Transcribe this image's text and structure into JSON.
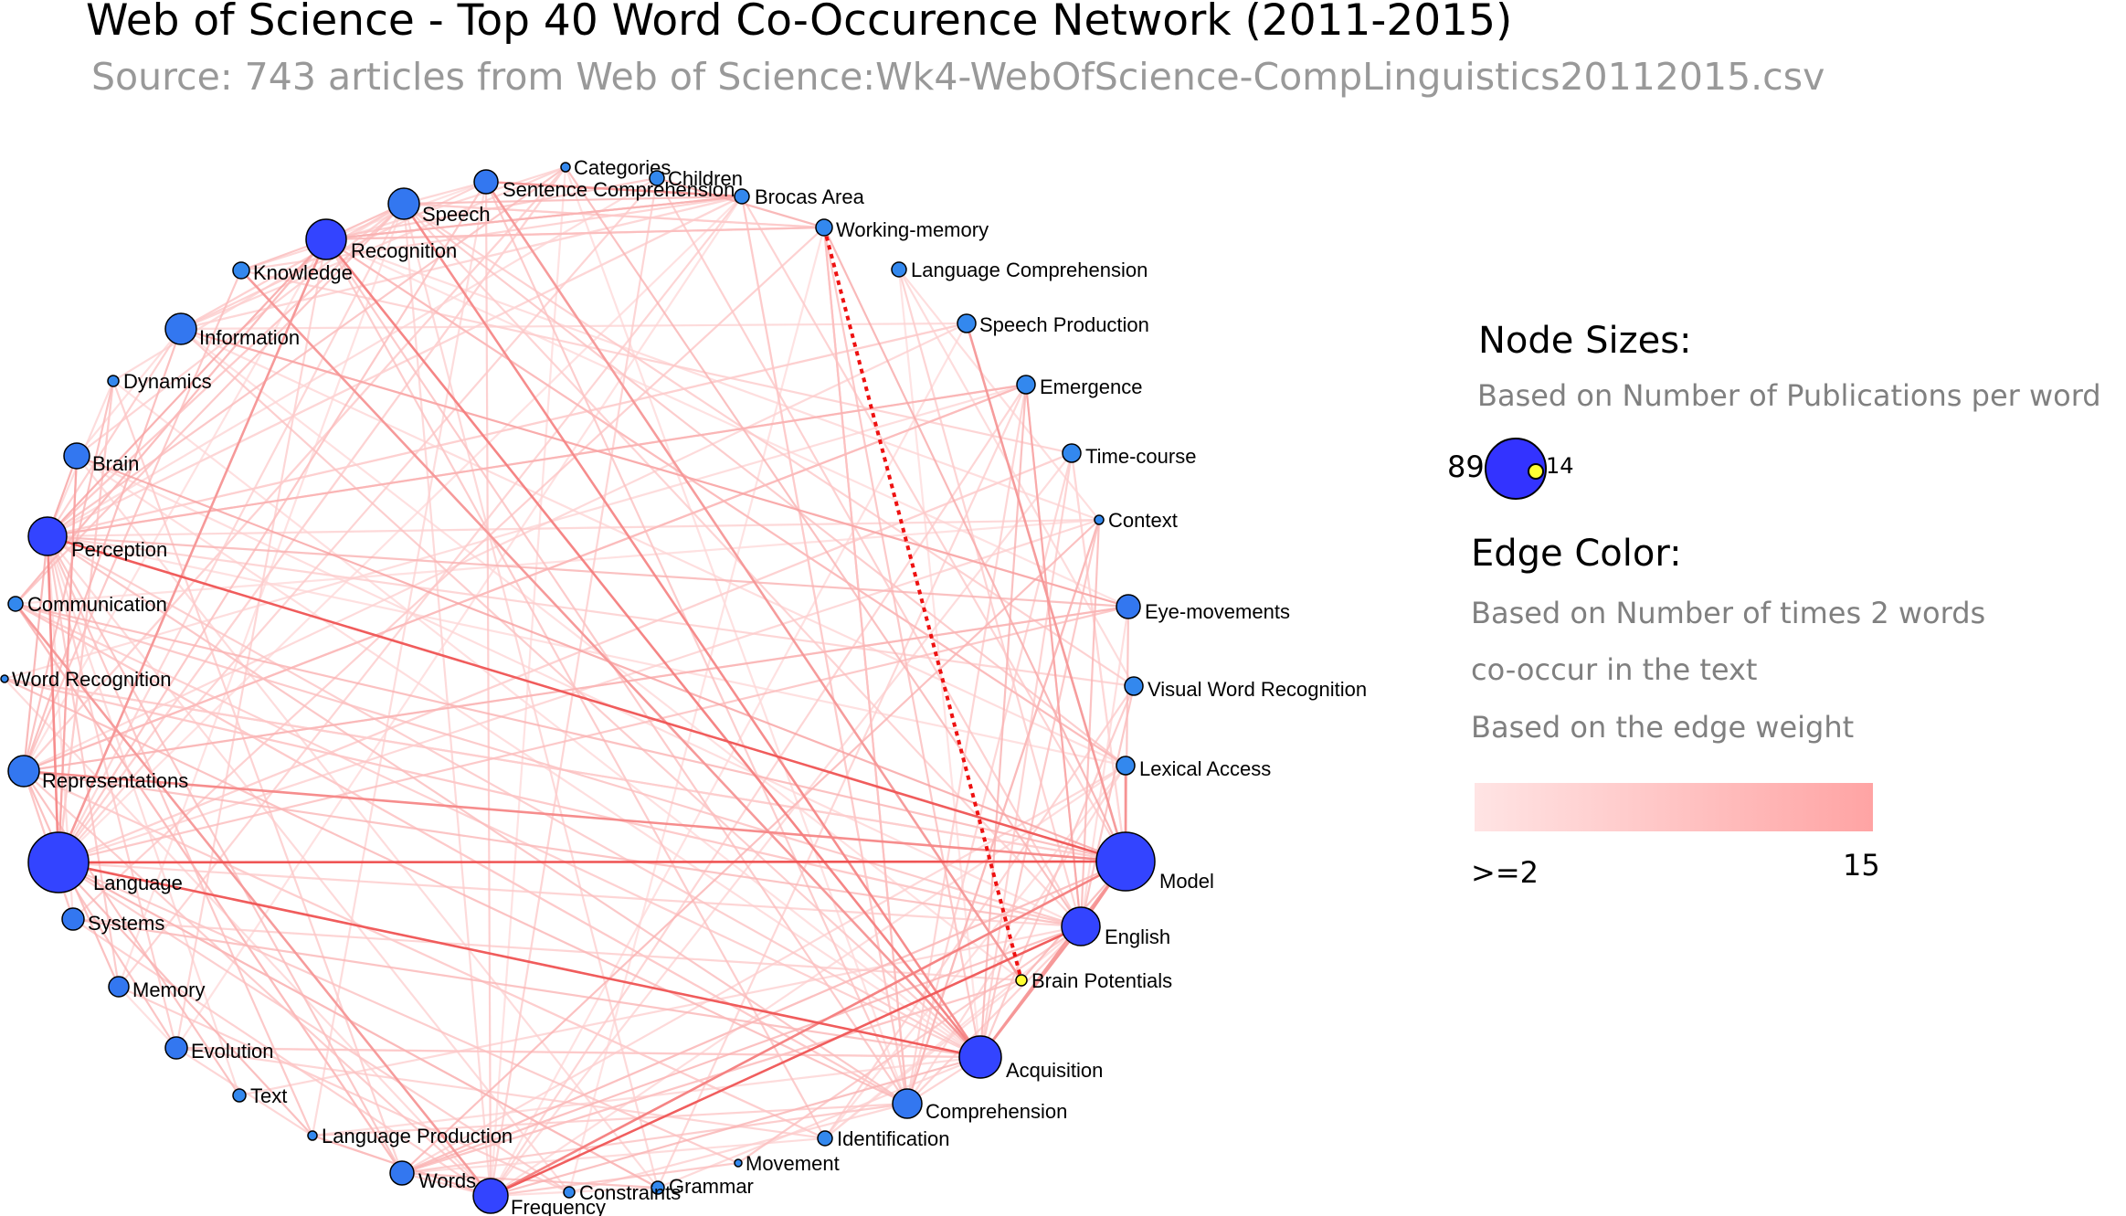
{
  "title": "Web of Science - Top 40 Word Co-Occurence Network (2011-2015)",
  "subtitle": "Source: 743 articles from Web of Science:Wk4-WebOfScience-CompLinguistics20112015.csv",
  "colors": {
    "node": "#3344ff",
    "node_small": "#3388ee",
    "node_highlight": "#ffff33",
    "edge_strong": "#ee3333",
    "edge_weak": "#ffdddd",
    "dotted_edge": "#ee1111"
  },
  "legend": {
    "node_sizes_title": "Node Sizes:",
    "node_sizes_desc": "Based on Number of Publications per word",
    "node_size_max": "89",
    "node_size_min": "14",
    "edge_color_title": "Edge Color:",
    "edge_color_desc_1": "Based on Number of times 2 words",
    "edge_color_desc_2": "co-occur in the text",
    "edge_color_desc_3": "Based on the edge weight",
    "edge_min": ">=2",
    "edge_max": "15"
  },
  "nodes": [
    {
      "id": "categories",
      "label": "Categories"
    },
    {
      "id": "children",
      "label": "Children"
    },
    {
      "id": "sentence-comprehension",
      "label": "Sentence Comprehension"
    },
    {
      "id": "brocas-area",
      "label": "Brocas Area"
    },
    {
      "id": "speech",
      "label": "Speech"
    },
    {
      "id": "working-memory",
      "label": "Working-memory"
    },
    {
      "id": "recognition",
      "label": "Recognition"
    },
    {
      "id": "language-comprehension",
      "label": "Language Comprehension"
    },
    {
      "id": "knowledge",
      "label": "Knowledge"
    },
    {
      "id": "speech-production",
      "label": "Speech Production"
    },
    {
      "id": "information",
      "label": "Information"
    },
    {
      "id": "emergence",
      "label": "Emergence"
    },
    {
      "id": "dynamics",
      "label": "Dynamics"
    },
    {
      "id": "time-course",
      "label": "Time-course"
    },
    {
      "id": "brain",
      "label": "Brain"
    },
    {
      "id": "context",
      "label": "Context"
    },
    {
      "id": "perception",
      "label": "Perception"
    },
    {
      "id": "communication",
      "label": "Communication"
    },
    {
      "id": "eye-movements",
      "label": "Eye-movements"
    },
    {
      "id": "word-recognition",
      "label": "Word Recognition"
    },
    {
      "id": "visual-word-recognition",
      "label": "Visual Word Recognition"
    },
    {
      "id": "representations",
      "label": "Representations"
    },
    {
      "id": "lexical-access",
      "label": "Lexical Access"
    },
    {
      "id": "language",
      "label": "Language"
    },
    {
      "id": "model",
      "label": "Model"
    },
    {
      "id": "systems",
      "label": "Systems"
    },
    {
      "id": "english",
      "label": "English"
    },
    {
      "id": "memory",
      "label": "Memory"
    },
    {
      "id": "brain-potentials",
      "label": "Brain Potentials"
    },
    {
      "id": "evolution",
      "label": "Evolution"
    },
    {
      "id": "acquisition",
      "label": "Acquisition"
    },
    {
      "id": "text",
      "label": "Text"
    },
    {
      "id": "comprehension",
      "label": "Comprehension"
    },
    {
      "id": "language-production",
      "label": "Language Production"
    },
    {
      "id": "identification",
      "label": "Identification"
    },
    {
      "id": "movement",
      "label": "Movement"
    },
    {
      "id": "words",
      "label": "Words"
    },
    {
      "id": "grammar",
      "label": "Grammar"
    },
    {
      "id": "constraints",
      "label": "Constraints"
    },
    {
      "id": "frequency",
      "label": "Frequency"
    }
  ]
}
